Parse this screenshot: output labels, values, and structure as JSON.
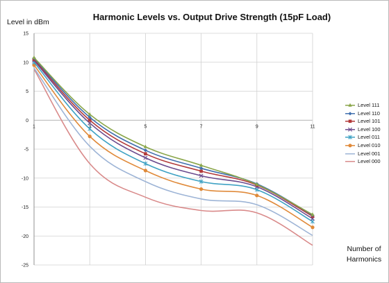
{
  "chart_data": {
    "type": "line",
    "title": "Harmonic Levels vs. Output Drive Strength (15pF Load)",
    "ylabel": "Level in dBm",
    "xlabel_lines": [
      "Number of",
      "Harmonics"
    ],
    "x": [
      1,
      3,
      5,
      7,
      9,
      11
    ],
    "x_ticks": [
      "1",
      "3",
      "5",
      "7",
      "9",
      "11"
    ],
    "y_ticks": [
      "15",
      "10",
      "5",
      "0",
      "-5",
      "-10",
      "-15",
      "-20",
      "-25"
    ],
    "ylim": [
      -25,
      15
    ],
    "grid": true,
    "legend_position": "right",
    "series": [
      {
        "name": "Level 111",
        "color": "#8aa64a",
        "marker": "triangle",
        "values": [
          10.8,
          1.0,
          -4.6,
          -7.8,
          -11.1,
          -16.3
        ]
      },
      {
        "name": "Level 110",
        "color": "#3f6fae",
        "marker": "diamond",
        "values": [
          10.7,
          0.5,
          -5.2,
          -8.3,
          -11.0,
          -16.4
        ]
      },
      {
        "name": "Level 101",
        "color": "#b23a3a",
        "marker": "square",
        "values": [
          10.5,
          0.0,
          -5.8,
          -8.8,
          -11.2,
          -16.6
        ]
      },
      {
        "name": "Level 100",
        "color": "#6a4a8e",
        "marker": "x",
        "values": [
          10.3,
          -0.5,
          -6.5,
          -9.6,
          -11.5,
          -17.0
        ]
      },
      {
        "name": "Level 011",
        "color": "#3fa2c4",
        "marker": "star",
        "values": [
          10.0,
          -1.5,
          -7.5,
          -10.6,
          -12.0,
          -17.5
        ]
      },
      {
        "name": "Level 010",
        "color": "#e08a3a",
        "marker": "circle",
        "values": [
          9.5,
          -2.8,
          -8.7,
          -11.9,
          -13.0,
          -18.5
        ]
      },
      {
        "name": "Level 001",
        "color": "#9db4d6",
        "marker": "none",
        "values": [
          9.0,
          -4.5,
          -10.6,
          -13.6,
          -14.6,
          -19.9
        ]
      },
      {
        "name": "Level 000",
        "color": "#d98a8a",
        "marker": "none",
        "values": [
          8.8,
          -7.5,
          -13.3,
          -15.6,
          -16.0,
          -21.6
        ]
      }
    ]
  }
}
